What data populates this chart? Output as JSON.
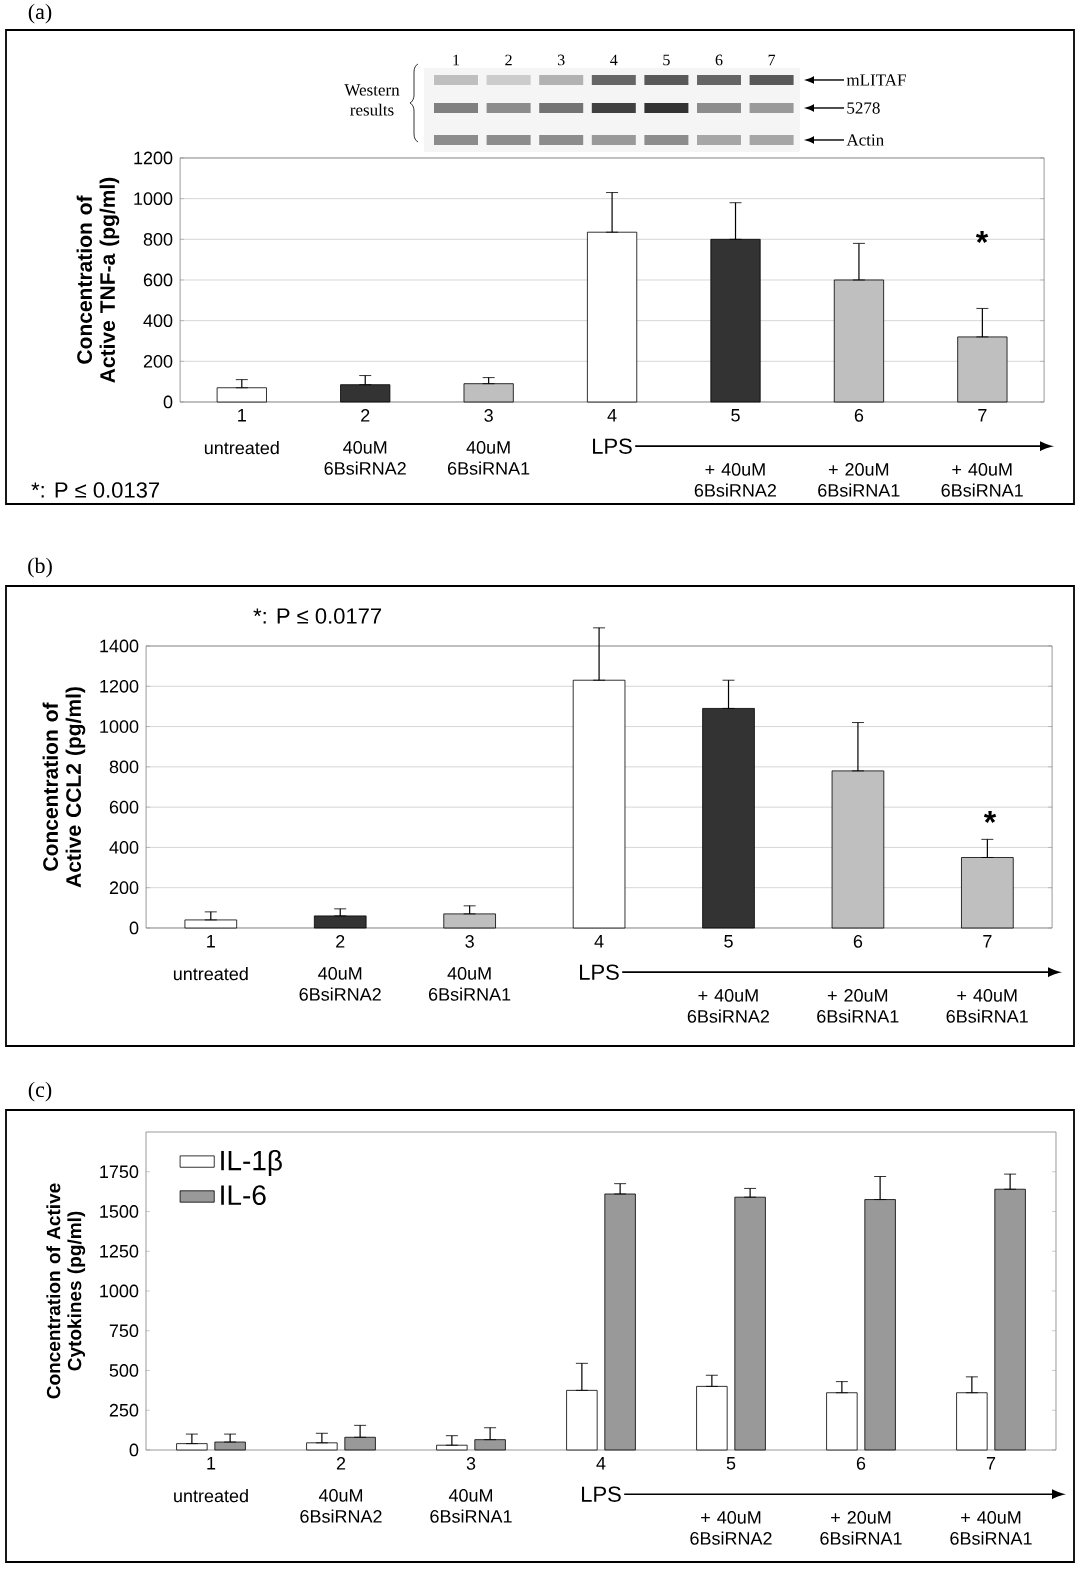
{
  "chart_data": [
    {
      "type": "bar",
      "title": "(a)",
      "ylabel": "Concentration of Active TNF-a (pg/ml)",
      "categories": [
        "1",
        "2",
        "3",
        "4",
        "5",
        "6",
        "7"
      ],
      "values": [
        70,
        85,
        90,
        835,
        800,
        600,
        320
      ],
      "errors": [
        [
          70,
          110
        ],
        [
          85,
          130
        ],
        [
          90,
          120
        ],
        [
          835,
          1030
        ],
        [
          800,
          980
        ],
        [
          600,
          780
        ],
        [
          320,
          460
        ]
      ],
      "colors": [
        "#ffffff",
        "#333333",
        "#bfbfbf",
        "#ffffff",
        "#333333",
        "#bfbfbf",
        "#bfbfbf"
      ],
      "ylim": [
        0,
        1200
      ],
      "yticks": [
        0,
        200,
        400,
        600,
        800,
        1000,
        1200
      ],
      "grid": "y",
      "annotations": [
        "untreated",
        "40uM 6BsiRNA2",
        "40uM 6BsiRNA1",
        "LPS",
        "+ 40uM 6BsiRNA2",
        "+ 20uM 6BsiRNA1",
        "+ 40uM 6BsiRNA1",
        "*: P ≤ 0.0137",
        "*",
        "1",
        "2",
        "3",
        "4",
        "5",
        "6",
        "7",
        "Western results",
        "mLITAF",
        "5278",
        "Actin"
      ]
    },
    {
      "type": "bar",
      "title": "(b)",
      "ylabel": "Concentration of Active CCL2 (pg/ml)",
      "categories": [
        "1",
        "2",
        "3",
        "4",
        "5",
        "6",
        "7"
      ],
      "values": [
        40,
        60,
        70,
        1230,
        1090,
        780,
        350
      ],
      "errors": [
        [
          40,
          80
        ],
        [
          60,
          95
        ],
        [
          70,
          110
        ],
        [
          1230,
          1490
        ],
        [
          1090,
          1230
        ],
        [
          780,
          1020
        ],
        [
          350,
          440
        ]
      ],
      "colors": [
        "#ffffff",
        "#333333",
        "#bfbfbf",
        "#ffffff",
        "#333333",
        "#bfbfbf",
        "#bfbfbf"
      ],
      "ylim": [
        0,
        1400
      ],
      "yticks": [
        0,
        200,
        400,
        600,
        800,
        1000,
        1200,
        1400
      ],
      "grid": "y",
      "annotations": [
        "untreated",
        "40uM 6BsiRNA2",
        "40uM 6BsiRNA1",
        "LPS",
        "+ 40uM 6BsiRNA2",
        "+ 20uM 6BsiRNA1",
        "+ 40uM 6BsiRNA1",
        "*: P ≤ 0.0177",
        "*"
      ]
    },
    {
      "type": "bar",
      "title": "(c)",
      "ylabel": "Concentration of Active Cytokines (pg/ml)",
      "categories": [
        "1",
        "2",
        "3",
        "4",
        "5",
        "6",
        "7"
      ],
      "series": [
        {
          "name": "IL-1β",
          "color": "#ffffff",
          "values": [
            40,
            45,
            30,
            375,
            400,
            360,
            360
          ],
          "errors": [
            [
              40,
              100
            ],
            [
              45,
              105
            ],
            [
              30,
              90
            ],
            [
              375,
              545
            ],
            [
              400,
              470
            ],
            [
              360,
              430
            ],
            [
              360,
              460
            ]
          ]
        },
        {
          "name": "IL-6",
          "color": "#999999",
          "values": [
            50,
            80,
            65,
            1610,
            1590,
            1575,
            1640
          ],
          "errors": [
            [
              50,
              100
            ],
            [
              80,
              155
            ],
            [
              65,
              140
            ],
            [
              1610,
              1675
            ],
            [
              1590,
              1645
            ],
            [
              1575,
              1720
            ],
            [
              1640,
              1735
            ]
          ]
        }
      ],
      "ylim": [
        0,
        2000
      ],
      "yticks": [
        0,
        250,
        500,
        750,
        1000,
        1250,
        1500,
        1750
      ],
      "grid": false,
      "legend": "top left",
      "annotations": [
        "untreated",
        "40uM 6BsiRNA2",
        "40uM 6BsiRNA1",
        "LPS",
        "+ 40uM 6BsiRNA2",
        "+ 20uM 6BsiRNA1",
        "+ 40uM 6BsiRNA1"
      ]
    }
  ]
}
